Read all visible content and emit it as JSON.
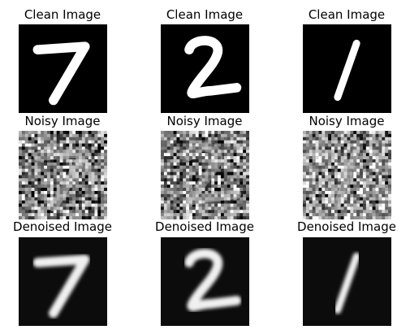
{
  "figure": {
    "rows": [
      {
        "label": "Clean Image",
        "kind": "clean"
      },
      {
        "label": "Noisy Image",
        "kind": "noisy"
      },
      {
        "label": "Denoised Image",
        "kind": "denoised"
      }
    ],
    "columns": [
      {
        "digit": "7"
      },
      {
        "digit": "2"
      },
      {
        "digit": "1"
      }
    ]
  }
}
